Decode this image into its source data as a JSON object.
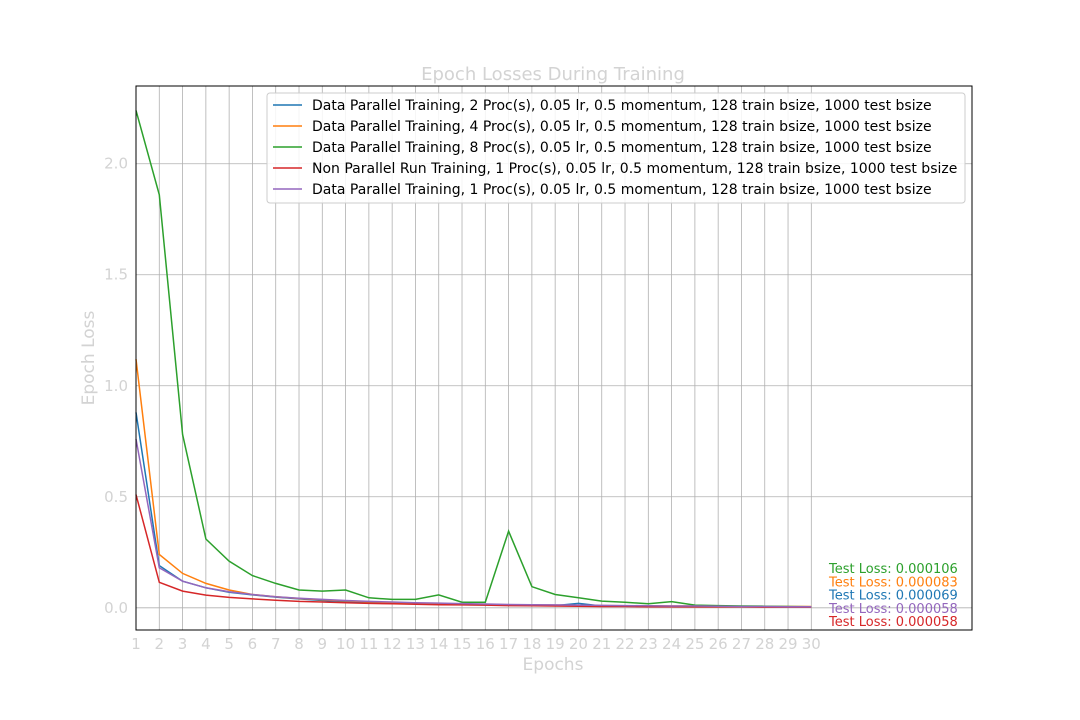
{
  "chart_data": {
    "type": "line",
    "title": "Epoch Losses During Training",
    "xlabel": "Epochs",
    "ylabel": "Epoch Loss",
    "xlim": [
      1,
      36.9
    ],
    "ylim": [
      -0.1,
      2.35
    ],
    "grid": true,
    "legend_position": "top-right",
    "x_ticks": [
      "1",
      "2",
      "3",
      "4",
      "5",
      "6",
      "7",
      "8",
      "9",
      "10",
      "11",
      "12",
      "13",
      "14",
      "15",
      "16",
      "17",
      "18",
      "19",
      "20",
      "21",
      "22",
      "23",
      "24",
      "25",
      "26",
      "27",
      "28",
      "29",
      "30"
    ],
    "y_ticks": [
      0.0,
      0.5,
      1.0,
      1.5,
      2.0
    ],
    "x": [
      1,
      2,
      3,
      4,
      5,
      6,
      7,
      8,
      9,
      10,
      11,
      12,
      13,
      14,
      15,
      16,
      17,
      18,
      19,
      20,
      21,
      22,
      23,
      24,
      25,
      26,
      27,
      28,
      29,
      30
    ],
    "series": [
      {
        "name": "Data Parallel Training, 2 Proc(s), 0.05 lr, 0.5 momentum, 128 train bsize, 1000 test bsize",
        "color": "#1f77b4",
        "values": [
          0.88,
          0.19,
          0.12,
          0.09,
          0.07,
          0.058,
          0.048,
          0.04,
          0.033,
          0.028,
          0.024,
          0.021,
          0.018,
          0.016,
          0.014,
          0.013,
          0.012,
          0.011,
          0.01,
          0.02,
          0.008,
          0.008,
          0.007,
          0.007,
          0.006,
          0.006,
          0.005,
          0.005,
          0.005,
          0.004
        ]
      },
      {
        "name": "Data Parallel Training, 4 Proc(s), 0.05 lr, 0.5 momentum, 128 train bsize, 1000 test bsize",
        "color": "#ff7f0e",
        "values": [
          1.12,
          0.24,
          0.155,
          0.11,
          0.08,
          0.06,
          0.05,
          0.042,
          0.036,
          0.031,
          0.027,
          0.023,
          0.02,
          0.018,
          0.016,
          0.015,
          0.014,
          0.013,
          0.012,
          0.011,
          0.01,
          0.009,
          0.009,
          0.008,
          0.008,
          0.007,
          0.007,
          0.006,
          0.006,
          0.006
        ]
      },
      {
        "name": "Data Parallel Training, 8 Proc(s), 0.05 lr, 0.5 momentum, 128 train bsize, 1000 test bsize",
        "color": "#2ca02c",
        "values": [
          2.24,
          1.86,
          0.78,
          0.31,
          0.21,
          0.145,
          0.11,
          0.08,
          0.075,
          0.08,
          0.045,
          0.038,
          0.038,
          0.058,
          0.025,
          0.025,
          0.345,
          0.095,
          0.06,
          0.045,
          0.03,
          0.025,
          0.018,
          0.028,
          0.012,
          0.01,
          0.008,
          0.007,
          0.006,
          0.005
        ]
      },
      {
        "name": "Non Parallel Run Training, 1 Proc(s), 0.05 lr, 0.5 momentum, 128 train bsize, 1000 test bsize",
        "color": "#d62728",
        "values": [
          0.51,
          0.115,
          0.075,
          0.057,
          0.047,
          0.04,
          0.034,
          0.029,
          0.026,
          0.023,
          0.02,
          0.018,
          0.016,
          0.014,
          0.013,
          0.012,
          0.01,
          0.009,
          0.008,
          0.007,
          0.006,
          0.006,
          0.005,
          0.005,
          0.004,
          0.004,
          0.004,
          0.003,
          0.003,
          0.003
        ]
      },
      {
        "name": "Data Parallel Training, 1 Proc(s), 0.05 lr, 0.5 momentum, 128 train bsize, 1000 test bsize",
        "color": "#9467bd",
        "values": [
          0.76,
          0.18,
          0.12,
          0.09,
          0.072,
          0.06,
          0.05,
          0.043,
          0.038,
          0.033,
          0.029,
          0.026,
          0.023,
          0.021,
          0.019,
          0.017,
          0.015,
          0.014,
          0.013,
          0.012,
          0.011,
          0.01,
          0.009,
          0.008,
          0.008,
          0.007,
          0.006,
          0.006,
          0.005,
          0.005
        ]
      }
    ],
    "annotations": [
      {
        "text": "Test Loss: 0.000106",
        "color": "#2ca02c"
      },
      {
        "text": "Test Loss: 0.000083",
        "color": "#ff7f0e"
      },
      {
        "text": "Test Loss: 0.000069",
        "color": "#1f77b4"
      },
      {
        "text": "Test Loss: 0.000058",
        "color": "#9467bd"
      },
      {
        "text": "Test Loss: 0.000058",
        "color": "#d62728"
      }
    ]
  }
}
